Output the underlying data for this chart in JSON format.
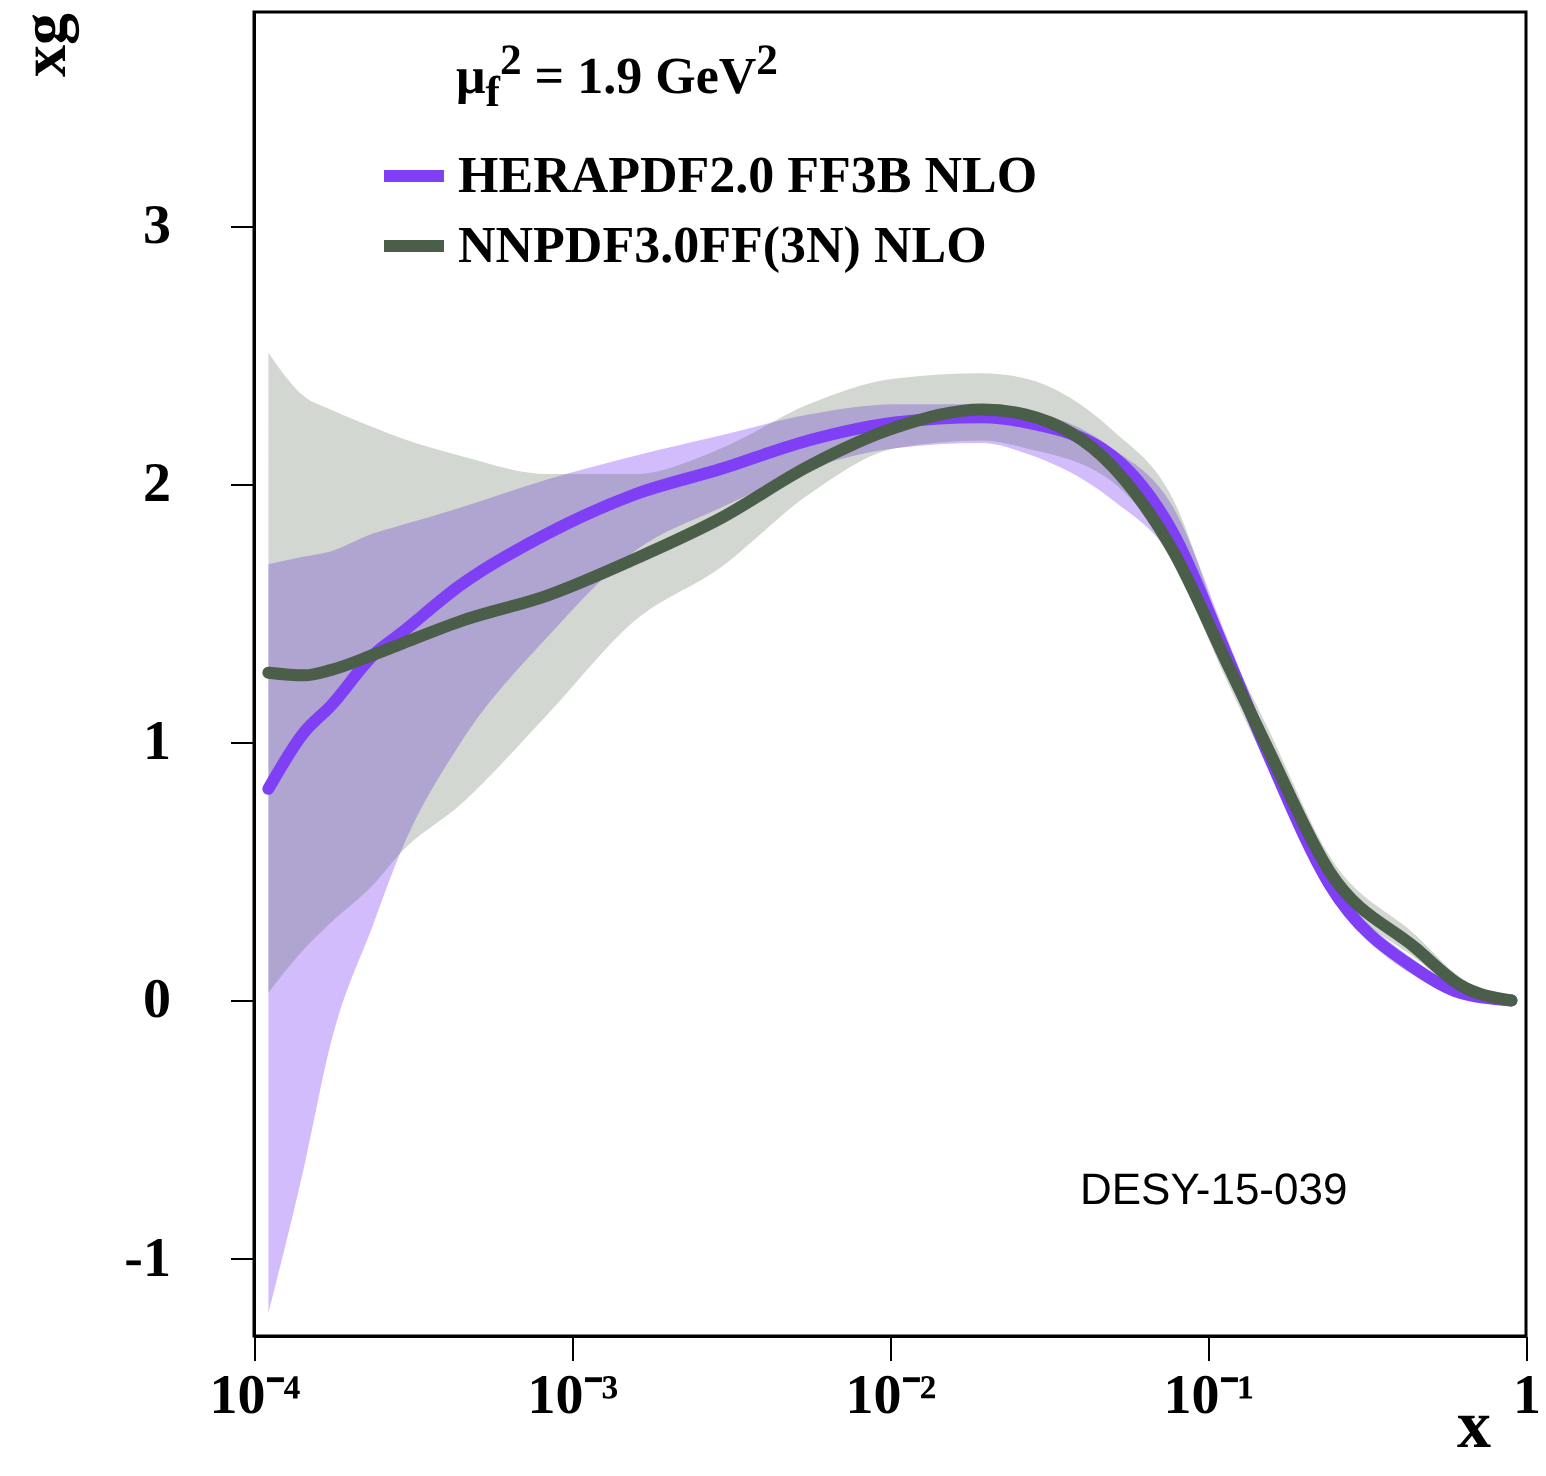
{
  "chart_data": {
    "type": "line",
    "xlabel": "x",
    "ylabel": "xg",
    "legend_title": "μ$_{f}$$^{2}$ = 1.9 GeV$^{2}$",
    "annotations": [
      "DESY-15-039"
    ],
    "log": "x",
    "xlim": [
      0.0001,
      1
    ],
    "ylim": [
      -1.3,
      3.83
    ],
    "xticks": [
      {
        "value": 0.0001,
        "label": "10⁻⁴"
      },
      {
        "value": 0.001,
        "label": "10⁻³"
      },
      {
        "value": 0.01,
        "label": "10⁻²"
      },
      {
        "value": 0.1,
        "label": "10⁻¹"
      },
      1
    ],
    "yticks": [
      -1,
      0,
      1,
      2,
      3
    ],
    "grid": false,
    "legend": "top left",
    "line_style": "solid",
    "marker": "none",
    "x": [
      0.000111,
      0.000144,
      0.000174,
      0.000238,
      0.000288,
      0.000447,
      0.00084,
      0.00157,
      0.00295,
      0.00554,
      0.0104,
      0.0195,
      0.0267,
      0.05,
      0.0778,
      0.1135,
      0.155,
      0.241,
      0.453,
      0.62,
      0.9
    ],
    "series": [
      {
        "name": "HERAPDF2.0 FF3B NLO",
        "color": "#7f3ff5",
        "values": [
          0.82,
          1.04,
          1.14,
          1.34,
          1.42,
          1.61,
          1.81,
          1.96,
          2.06,
          2.17,
          2.24,
          2.26,
          2.24,
          2.11,
          1.81,
          1.35,
          0.95,
          0.45,
          0.12,
          0.03,
          0
        ],
        "lower": [
          -1.21,
          -0.64,
          -0.17,
          0.3,
          0.57,
          1.0,
          1.41,
          1.74,
          1.91,
          2.06,
          2.14,
          2.16,
          2.12,
          1.94,
          1.71,
          1.28,
          0.9,
          0.42,
          0.09,
          0.02,
          0
        ],
        "upper": [
          1.69,
          1.72,
          1.74,
          1.81,
          1.84,
          1.91,
          2.02,
          2.11,
          2.19,
          2.27,
          2.31,
          2.31,
          2.29,
          2.14,
          1.91,
          1.42,
          1.0,
          0.49,
          0.15,
          0.05,
          0
        ]
      },
      {
        "name": "NNPDF3.0FF(3N) NLO",
        "color": "#4a5e4a",
        "values": [
          1.27,
          1.26,
          1.28,
          1.34,
          1.38,
          1.47,
          1.57,
          1.71,
          1.87,
          2.07,
          2.22,
          2.29,
          2.27,
          2.07,
          1.74,
          1.32,
          0.97,
          0.5,
          0.2,
          0.06,
          0
        ],
        "lower": [
          0.03,
          0.2,
          0.3,
          0.45,
          0.57,
          0.76,
          1.11,
          1.47,
          1.68,
          1.96,
          2.14,
          2.17,
          2.14,
          2.01,
          1.71,
          1.25,
          0.9,
          0.45,
          0.16,
          0.04,
          0
        ],
        "upper": [
          2.51,
          2.34,
          2.29,
          2.22,
          2.18,
          2.11,
          2.04,
          2.04,
          2.14,
          2.31,
          2.41,
          2.43,
          2.41,
          2.21,
          1.94,
          1.4,
          1.05,
          0.56,
          0.25,
          0.09,
          0
        ]
      }
    ]
  }
}
